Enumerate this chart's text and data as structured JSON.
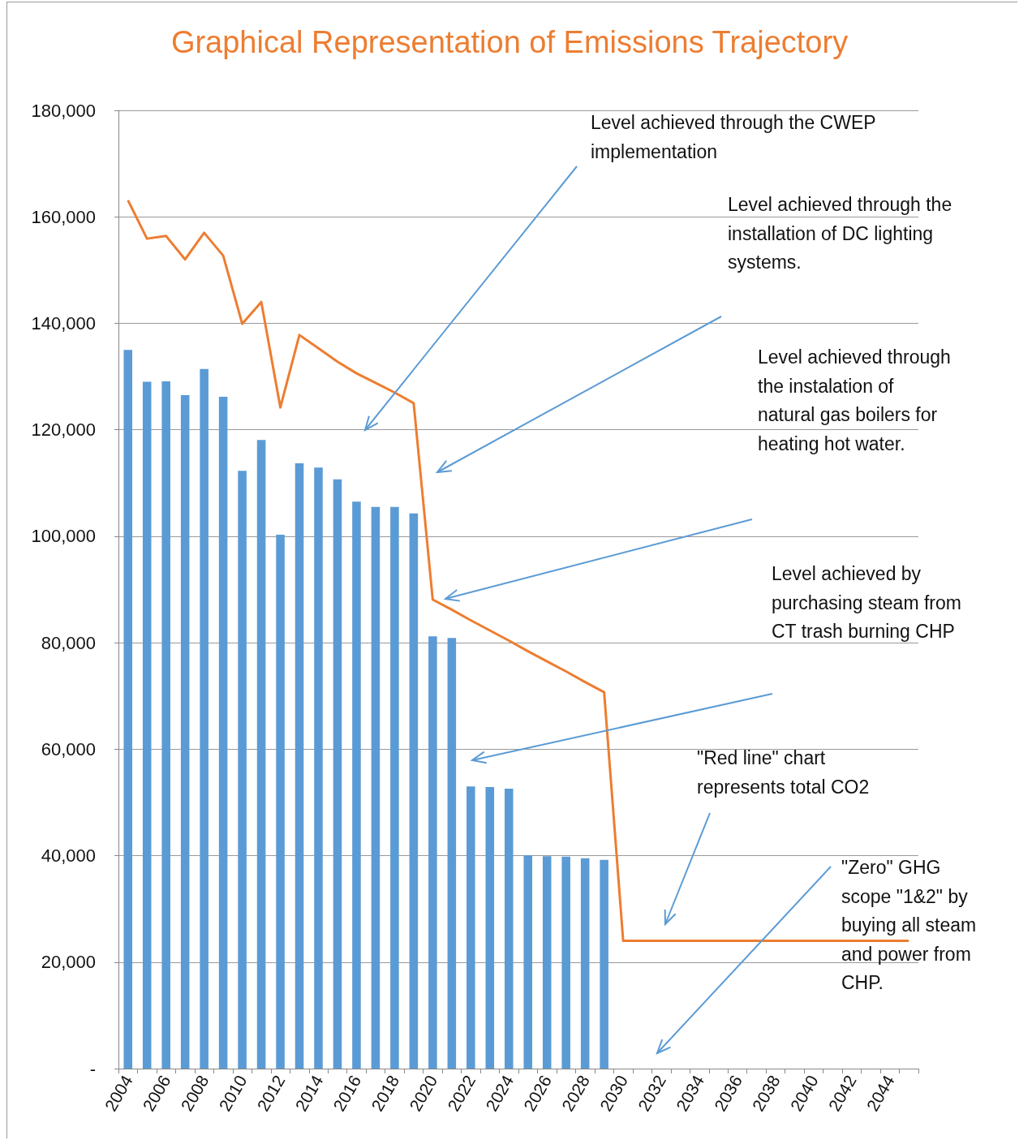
{
  "chart_data": {
    "type": "bar",
    "title": "Graphical Representation of Emissions Trajectory",
    "categories": [
      "2004",
      null,
      "2006",
      null,
      "2008",
      null,
      "2010",
      null,
      "2012",
      null,
      "2014",
      null,
      "2016",
      null,
      "2018",
      null,
      "2020",
      null,
      "2022",
      null,
      "2024",
      null,
      "2026",
      null,
      "2028",
      null,
      "2030",
      null,
      "2032",
      null,
      "2034",
      null,
      "2036",
      null,
      "2038",
      null,
      "2040",
      null,
      "2042",
      null,
      "2044",
      null
    ],
    "series": [
      {
        "color": "#5b9bd5",
        "values": [
          135000,
          129000,
          129100,
          126500,
          131400,
          126200,
          112300,
          118100,
          100300,
          113700,
          112900,
          110700,
          106500,
          105500,
          105500,
          104300,
          81200,
          80900,
          53000,
          52900,
          52600,
          40100,
          39900,
          39800,
          39500,
          39200,
          null,
          null,
          null,
          null,
          null,
          null,
          null,
          null,
          null,
          null,
          null,
          null,
          null,
          null,
          null,
          null
        ]
      },
      {
        "type": "line",
        "color": "#ed7d31",
        "values": [
          163100,
          155900,
          156400,
          152000,
          157000,
          152700,
          139900,
          144000,
          124200,
          137800,
          135300,
          132800,
          130600,
          128800,
          127000,
          125000,
          88100,
          86200,
          84200,
          82300,
          80400,
          78400,
          76500,
          74600,
          72600,
          70700,
          24000,
          24000,
          24000,
          24000,
          24000,
          24000,
          24000,
          24000,
          24000,
          24000,
          24000,
          24000,
          24000,
          24000,
          24000,
          24000
        ]
      }
    ],
    "ylim": [
      0,
      180000
    ],
    "yticks": [
      {
        "value": 0,
        "label": "-"
      },
      {
        "value": 20000,
        "label": "20,000"
      },
      {
        "value": 40000,
        "label": "40,000"
      },
      {
        "value": 60000,
        "label": "60,000"
      },
      {
        "value": 80000,
        "label": "80,000"
      },
      {
        "value": 100000,
        "label": "100,000"
      },
      {
        "value": 120000,
        "label": "120,000"
      },
      {
        "value": 140000,
        "label": "140,000"
      },
      {
        "value": 160000,
        "label": "160,000"
      },
      {
        "value": 180000,
        "label": "180,000"
      }
    ],
    "grid": "y",
    "marker": "none",
    "annotations": [
      "Level achieved through the CWEP implementation",
      "Level achieved through the installation of DC lighting systems.",
      "Level achieved through the instalation of natural gas boilers for heating hot water.",
      "Level achieved by purchasing steam from CT trash burning CHP",
      "\"Red line\" chart represents total CO2",
      "\"Zero\" GHG scope \"1&2\" by buying all steam and power from CHP."
    ]
  }
}
